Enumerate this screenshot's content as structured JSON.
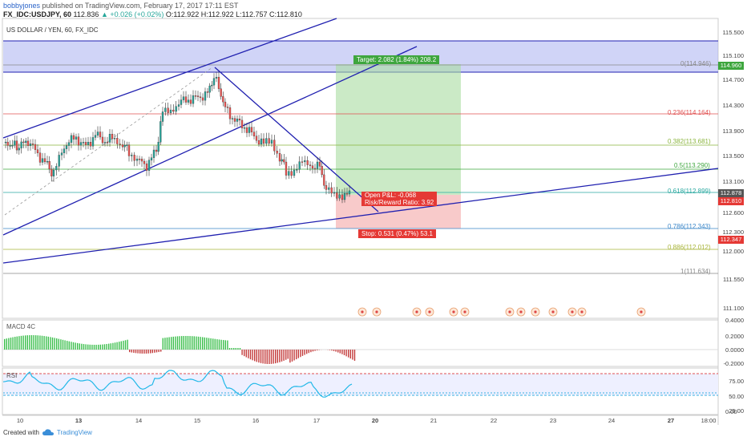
{
  "header": {
    "user": "bobbyjones",
    "published": " published on TradingView.com, February 17, 2017 17:11 EST",
    "symbol": "FX_IDC:USDJPY, 60",
    "last": "112.836",
    "change": "▲ +0.026 (+0.02%)",
    "ohlc": "O:112.922 H:112.922 L:112.757 C:112.810"
  },
  "chart_title": "US DOLLAR / YEN, 60, FX_IDC",
  "price_ticks": [
    "115.500",
    "115.100",
    "114.700",
    "114.300",
    "113.900",
    "113.500",
    "113.100",
    "112.600",
    "112.300",
    "112.000",
    "111.550",
    "111.100"
  ],
  "price_tags": {
    "target": "114.960",
    "cur1": "112.878",
    "cur2": "112.810",
    "stop": "112.347"
  },
  "macd": {
    "label": "MACD 4C",
    "ticks": [
      "0.4000",
      "0.2000",
      "0.0000",
      "-0.2000"
    ]
  },
  "rsi": {
    "label": "RSI",
    "ticks": [
      "75.00",
      "50.00",
      "25.00",
      "0.00"
    ]
  },
  "time_ticks": [
    "10",
    "13",
    "14",
    "15",
    "16",
    "17",
    "20",
    "21",
    "22",
    "23",
    "24",
    "27",
    "18:00"
  ],
  "fib_levels": [
    {
      "label": "0(114.946)",
      "color": "#888888"
    },
    {
      "label": "0.236(114.164)",
      "color": "#e05050"
    },
    {
      "label": "0.382(113.681)",
      "color": "#8ab43c"
    },
    {
      "label": "0.5(113.290)",
      "color": "#3ea63e"
    },
    {
      "label": "0.618(112.899)",
      "color": "#2aa8a0"
    },
    {
      "label": "0.786(112.343)",
      "color": "#3a86c8"
    },
    {
      "label": "0.886(112.012)",
      "color": "#a8b43a"
    },
    {
      "label": "1(111.634)",
      "color": "#888888"
    }
  ],
  "position": {
    "target": "Target: 2.082 (1.84%) 208.2",
    "open_pl": "Open P&L: -0.068",
    "rr": "Risk/Reward Ratio: 3.92",
    "stop": "Stop: 0.531 (0.47%) 53.1"
  },
  "footer": {
    "created": "Created with",
    "brand": "TradingView"
  },
  "colors": {
    "bull": "#26a69a",
    "bear": "#ef5350",
    "channel": "#2020b0",
    "zone": "#aab0f0"
  }
}
